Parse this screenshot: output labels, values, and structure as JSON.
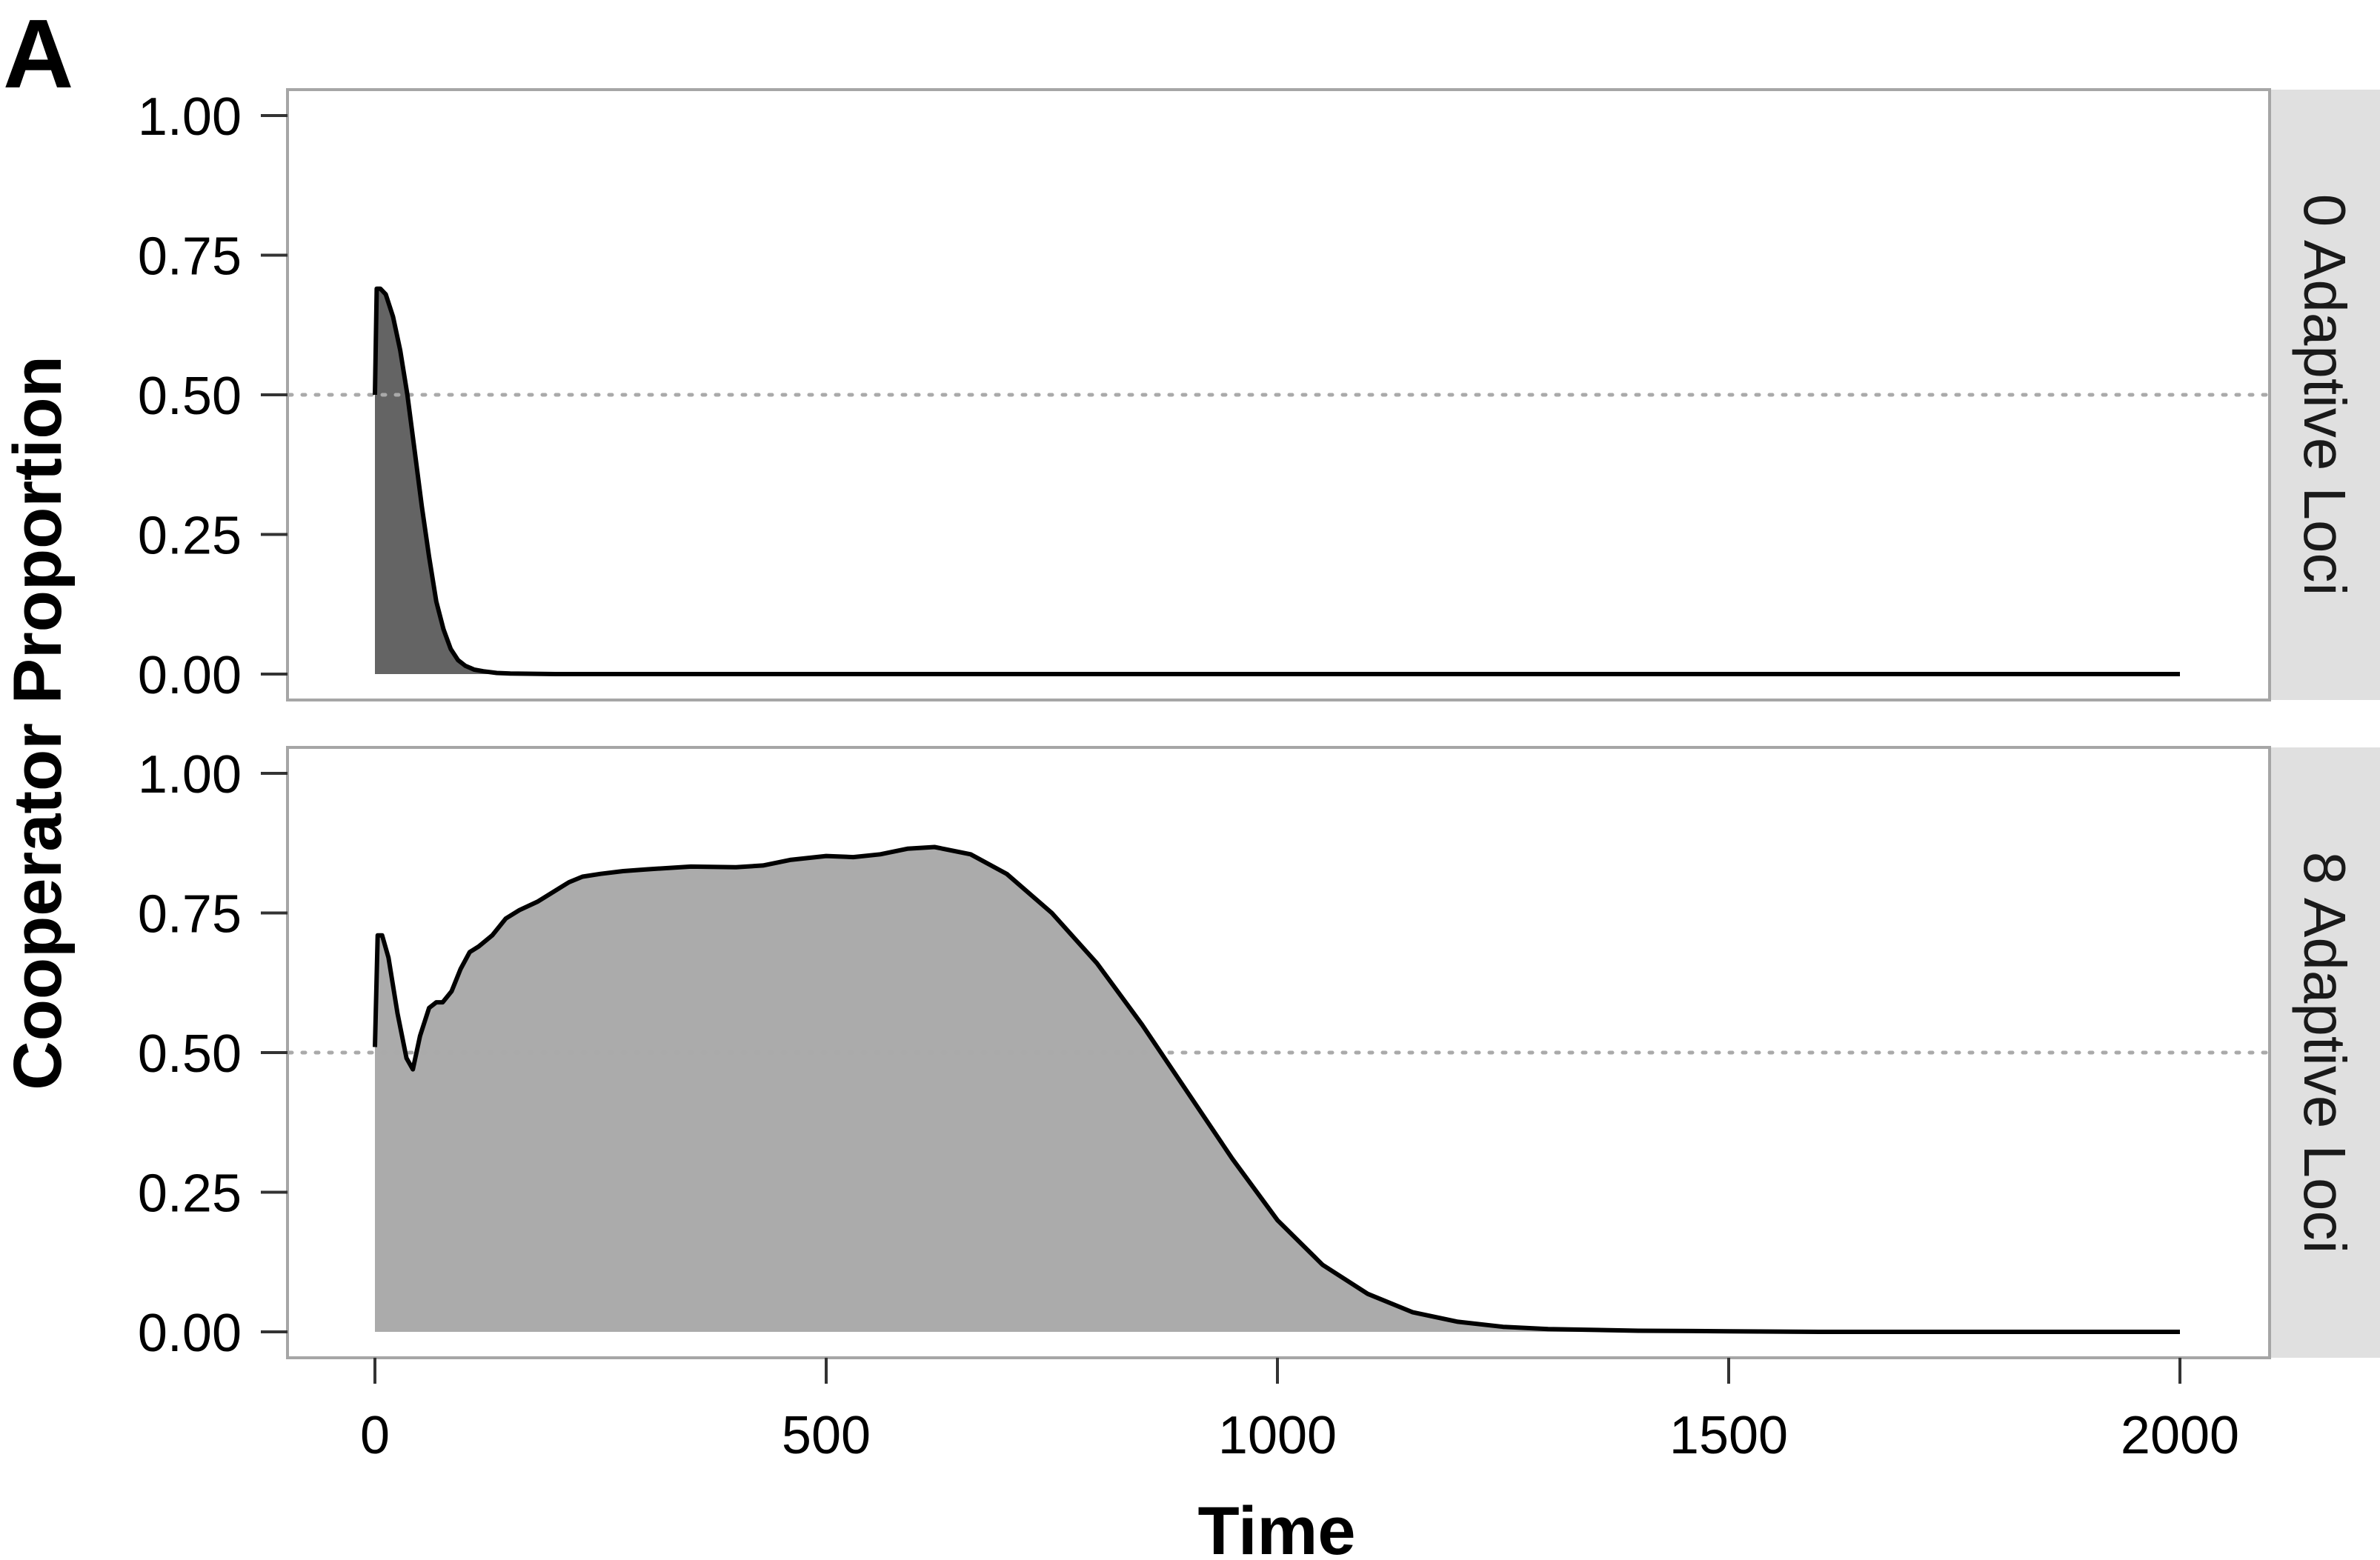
{
  "figure": {
    "panel_tag": "A",
    "xlabel": "Time",
    "ylabel": "Cooperator Proportion"
  },
  "colors": {
    "panel_border": "#a6a6a6",
    "strip_background": "#e0e0e0",
    "reference_line": "#aaaaaa",
    "line": "#000000",
    "fill_panel_0": "#646464",
    "fill_panel_1": "#ababab"
  },
  "chart_data": [
    {
      "type": "area",
      "facet_label": "0 Adaptive Loci",
      "xlim": [
        0,
        2000
      ],
      "ylim": [
        0,
        1
      ],
      "x_ticks": [
        0,
        500,
        1000,
        1500,
        2000
      ],
      "x_tick_labels": [
        "0",
        "500",
        "1000",
        "1500",
        "2000"
      ],
      "y_ticks": [
        0,
        0.25,
        0.5,
        0.75,
        1.0
      ],
      "y_tick_labels": [
        "0.00",
        "0.25",
        "0.50",
        "0.75",
        "1.00"
      ],
      "reference_line_y": 0.5,
      "grid": false,
      "x": [
        0,
        2,
        6,
        12,
        20,
        28,
        36,
        44,
        52,
        60,
        68,
        76,
        84,
        92,
        100,
        110,
        120,
        135,
        150,
        200,
        300,
        500,
        1000,
        1500,
        2000
      ],
      "y": [
        0.5,
        0.69,
        0.69,
        0.68,
        0.64,
        0.58,
        0.5,
        0.4,
        0.3,
        0.21,
        0.13,
        0.08,
        0.045,
        0.025,
        0.015,
        0.008,
        0.005,
        0.002,
        0.001,
        0.0,
        0.0,
        0.0,
        0.0,
        0.0,
        0.0
      ]
    },
    {
      "type": "area",
      "facet_label": "8 Adaptive Loci",
      "xlim": [
        0,
        2000
      ],
      "ylim": [
        0,
        1
      ],
      "x_ticks": [
        0,
        500,
        1000,
        1500,
        2000
      ],
      "x_tick_labels": [
        "0",
        "500",
        "1000",
        "1500",
        "2000"
      ],
      "y_ticks": [
        0,
        0.25,
        0.5,
        0.75,
        1.0
      ],
      "y_tick_labels": [
        "0.00",
        "0.25",
        "0.50",
        "0.75",
        "1.00"
      ],
      "reference_line_y": 0.5,
      "grid": false,
      "x": [
        0,
        3,
        8,
        15,
        25,
        35,
        42,
        50,
        60,
        68,
        75,
        85,
        95,
        105,
        115,
        130,
        145,
        160,
        180,
        200,
        215,
        230,
        250,
        275,
        300,
        350,
        400,
        430,
        460,
        500,
        530,
        560,
        590,
        620,
        660,
        700,
        750,
        800,
        850,
        900,
        950,
        1000,
        1050,
        1100,
        1150,
        1200,
        1250,
        1300,
        1400,
        1500,
        1600,
        1800,
        2000
      ],
      "y": [
        0.51,
        0.71,
        0.71,
        0.67,
        0.57,
        0.49,
        0.47,
        0.53,
        0.58,
        0.59,
        0.59,
        0.61,
        0.65,
        0.68,
        0.69,
        0.71,
        0.74,
        0.755,
        0.77,
        0.79,
        0.805,
        0.815,
        0.82,
        0.825,
        0.828,
        0.833,
        0.832,
        0.835,
        0.845,
        0.852,
        0.85,
        0.855,
        0.865,
        0.868,
        0.855,
        0.82,
        0.75,
        0.66,
        0.55,
        0.43,
        0.31,
        0.2,
        0.12,
        0.068,
        0.035,
        0.018,
        0.009,
        0.005,
        0.002,
        0.001,
        0.0,
        0.0,
        0.0
      ]
    }
  ]
}
